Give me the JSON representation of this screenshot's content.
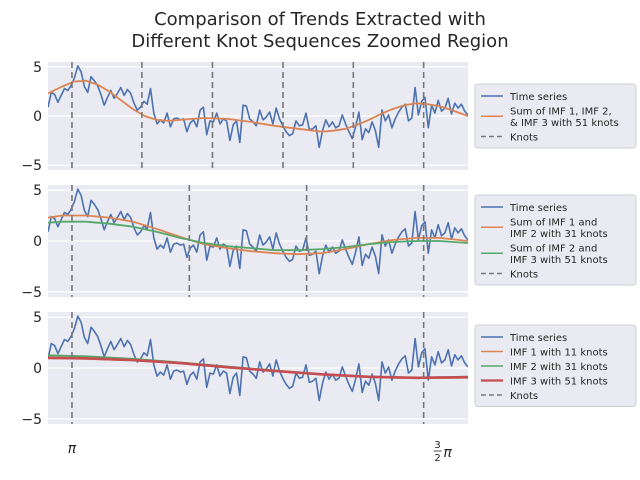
{
  "figure": {
    "title_line1": "Comparison of Trends Extracted with",
    "title_line2": "Different Knot Sequences Zoomed Region"
  },
  "colors": {
    "time_series": "#4c72b0",
    "orange": "#dd8452",
    "green": "#55a868",
    "red": "#c44e52",
    "knots": "#777777",
    "panel_bg": "#eaeaf2",
    "grid": "#ffffff"
  },
  "chart_data": [
    {
      "type": "line",
      "xlim": [
        3.04,
        4.82
      ],
      "ylim": [
        -5.5,
        5.5
      ],
      "yticks": [
        5,
        0,
        -5
      ],
      "knots_x": [
        3.1416,
        3.438,
        3.737,
        4.036,
        4.334,
        4.632
      ],
      "series": [
        {
          "name": "Time series",
          "role": "time_series"
        },
        {
          "name": "Sum of IMF 1, IMF 2, & IMF 3 with 51 knots",
          "role": "orange",
          "x": [
            3.04,
            3.1,
            3.15,
            3.2,
            3.25,
            3.3,
            3.35,
            3.4,
            3.45,
            3.5,
            3.55,
            3.6,
            3.7,
            3.8,
            3.9,
            4.0,
            4.1,
            4.2,
            4.25,
            4.3,
            4.35,
            4.4,
            4.45,
            4.5,
            4.55,
            4.6,
            4.65,
            4.7,
            4.75,
            4.82
          ],
          "values": [
            2.3,
            3.0,
            3.5,
            3.6,
            3.2,
            2.5,
            1.6,
            0.7,
            0.0,
            -0.4,
            -0.5,
            -0.4,
            -0.2,
            -0.3,
            -0.6,
            -1.0,
            -1.3,
            -1.6,
            -1.5,
            -1.3,
            -0.9,
            -0.4,
            0.2,
            0.7,
            1.1,
            1.3,
            1.2,
            1.0,
            0.6,
            0.0
          ]
        }
      ],
      "legend": {
        "placement": "right",
        "entries": [
          {
            "lines": [
              "Time series"
            ],
            "role": "time_series"
          },
          {
            "lines": [
              "Sum of IMF 1, IMF 2,",
              "& IMF 3 with 51 knots"
            ],
            "role": "orange"
          },
          {
            "lines": [
              "Knots"
            ],
            "role": "knots"
          }
        ]
      }
    },
    {
      "type": "line",
      "xlim": [
        3.04,
        4.82
      ],
      "ylim": [
        -5.5,
        5.5
      ],
      "yticks": [
        5,
        0,
        -5
      ],
      "knots_x": [
        3.1416,
        3.639,
        4.136,
        4.632
      ],
      "series": [
        {
          "name": "Time series",
          "role": "time_series"
        },
        {
          "name": "Sum of IMF 1 and IMF 2 with 31 knots",
          "role": "orange",
          "x": [
            3.04,
            3.1,
            3.2,
            3.3,
            3.4,
            3.5,
            3.6,
            3.7,
            3.8,
            3.9,
            4.0,
            4.1,
            4.2,
            4.3,
            4.4,
            4.5,
            4.6,
            4.7,
            4.82
          ],
          "values": [
            2.3,
            2.5,
            2.5,
            2.3,
            1.9,
            1.2,
            0.4,
            -0.3,
            -0.7,
            -1.0,
            -1.2,
            -1.3,
            -1.2,
            -0.8,
            -0.3,
            0.1,
            0.3,
            0.3,
            0.0
          ]
        },
        {
          "name": "Sum of IMF 2 and IMF 3 with 51 knots",
          "role": "green",
          "x": [
            3.04,
            3.1,
            3.2,
            3.3,
            3.4,
            3.5,
            3.6,
            3.7,
            3.8,
            3.9,
            4.0,
            4.1,
            4.2,
            4.3,
            4.4,
            4.5,
            4.6,
            4.7,
            4.82
          ],
          "values": [
            1.8,
            1.9,
            1.9,
            1.7,
            1.4,
            0.9,
            0.3,
            -0.2,
            -0.5,
            -0.7,
            -0.9,
            -0.9,
            -0.8,
            -0.6,
            -0.3,
            -0.1,
            0.0,
            0.0,
            -0.2
          ]
        }
      ],
      "legend": {
        "placement": "right",
        "entries": [
          {
            "lines": [
              "Time series"
            ],
            "role": "time_series"
          },
          {
            "lines": [
              "Sum of IMF 1 and",
              "IMF 2 with 31 knots"
            ],
            "role": "orange"
          },
          {
            "lines": [
              "Sum of IMF 2 and",
              "IMF 3 with 51 knots"
            ],
            "role": "green"
          },
          {
            "lines": [
              "Knots"
            ],
            "role": "knots"
          }
        ]
      }
    },
    {
      "type": "line",
      "xlim": [
        3.04,
        4.82
      ],
      "ylim": [
        -5.5,
        5.5
      ],
      "yticks": [
        5,
        0,
        -5
      ],
      "xticks": [
        {
          "x": 3.1416,
          "label": "π"
        },
        {
          "x": 4.7124,
          "label": "3/2π"
        }
      ],
      "knots_x": [
        3.1416,
        4.632
      ],
      "series": [
        {
          "name": "Time series",
          "role": "time_series"
        },
        {
          "name": "IMF 1 with 11 knots",
          "role": "orange",
          "x": [
            3.04,
            3.2,
            3.4,
            3.6,
            3.8,
            4.0,
            4.2,
            4.4,
            4.6,
            4.82
          ],
          "values": [
            0.95,
            0.9,
            0.75,
            0.45,
            0.05,
            -0.3,
            -0.65,
            -0.9,
            -1.0,
            -0.95
          ]
        },
        {
          "name": "IMF 2 with 31 knots",
          "role": "green",
          "x": [
            3.04,
            3.2,
            3.4,
            3.6,
            3.8,
            4.0,
            4.2,
            4.4,
            4.6,
            4.82
          ],
          "values": [
            1.25,
            1.15,
            0.9,
            0.55,
            0.15,
            -0.25,
            -0.6,
            -0.85,
            -0.95,
            -0.85
          ]
        },
        {
          "name": "IMF 3 with 51 knots",
          "role": "red",
          "x": [
            3.04,
            3.2,
            3.4,
            3.6,
            3.8,
            4.0,
            4.2,
            4.4,
            4.6,
            4.82
          ],
          "values": [
            1.0,
            0.95,
            0.78,
            0.48,
            0.08,
            -0.28,
            -0.62,
            -0.86,
            -0.96,
            -0.9
          ]
        }
      ],
      "legend": {
        "placement": "right",
        "entries": [
          {
            "lines": [
              "Time series"
            ],
            "role": "time_series"
          },
          {
            "lines": [
              "IMF 1 with 11 knots"
            ],
            "role": "orange"
          },
          {
            "lines": [
              "IMF 2 with 31 knots"
            ],
            "role": "green"
          },
          {
            "lines": [
              "IMF 3 with 51 knots"
            ],
            "role": "red"
          },
          {
            "lines": [
              "Knots"
            ],
            "role": "knots"
          }
        ]
      }
    }
  ],
  "time_series": {
    "x_start": 3.04,
    "x_end": 4.82,
    "values": [
      0.9,
      2.4,
      2.2,
      1.4,
      2.1,
      2.8,
      2.6,
      3.1,
      3.9,
      5.1,
      4.5,
      3.0,
      2.4,
      4.0,
      3.6,
      3.1,
      2.2,
      1.1,
      1.9,
      2.6,
      1.8,
      2.3,
      2.9,
      2.1,
      2.7,
      2.3,
      1.3,
      0.6,
      0.9,
      1.5,
      1.2,
      2.8,
      0.3,
      -0.8,
      -0.4,
      -0.7,
      0.3,
      -1.1,
      -0.3,
      -0.2,
      -0.4,
      -0.3,
      -1.6,
      -0.7,
      -0.4,
      -1.1,
      0.6,
      0.9,
      -1.9,
      -0.5,
      -0.6,
      0.3,
      -0.8,
      -0.3,
      -0.5,
      -2.5,
      -0.9,
      -0.5,
      -2.7,
      1.1,
      1.0,
      -0.3,
      -0.6,
      -1.0,
      0.6,
      -0.4,
      -0.1,
      0.4,
      -0.8,
      0.8,
      -0.3,
      -1.0,
      -1.6,
      -2.0,
      -1.8,
      -0.5,
      -1.0,
      -0.9,
      0.3,
      -1.4,
      -1.3,
      -1.0,
      -3.2,
      -1.5,
      -0.4,
      -1.1,
      -0.6,
      -1.2,
      -1.0,
      0.1,
      -0.8,
      -1.6,
      -2.3,
      -1.1,
      0.4,
      -2.4,
      -1.3,
      -1.7,
      -0.6,
      -1.5,
      -3.2,
      0.6,
      -0.5,
      0.1,
      -1.2,
      -0.3,
      0.4,
      0.9,
      1.2,
      -0.5,
      -0.2,
      2.9,
      0.1,
      1.5,
      1.9,
      -1.2,
      1.1,
      0.3,
      1.6,
      0.5,
      0.8,
      1.8,
      0.2,
      1.3,
      0.8,
      1.2,
      0.5,
      0.1
    ]
  }
}
